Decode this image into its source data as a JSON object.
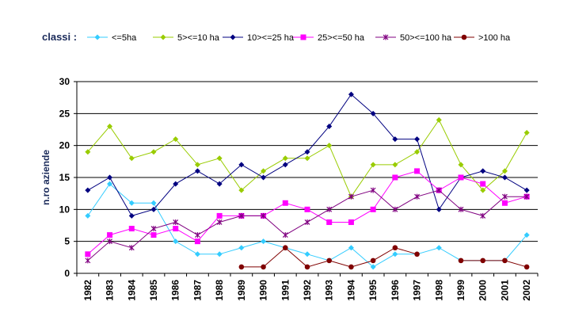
{
  "chart_data": {
    "type": "line",
    "legend_title": "classi :",
    "ylabel": "n.ro aziende",
    "xlabel": "",
    "ylim": [
      0,
      30
    ],
    "yticks": [
      0,
      5,
      10,
      15,
      20,
      25,
      30
    ],
    "grid": "horizontal",
    "legend_position": "top",
    "categories": [
      "1982",
      "1983",
      "1984",
      "1985",
      "1986",
      "1987",
      "1988",
      "1989",
      "1990",
      "1991",
      "1992",
      "1993",
      "1994",
      "1995",
      "1996",
      "1997",
      "1998",
      "1999",
      "2000",
      "2001",
      "2002"
    ],
    "series": [
      {
        "name": "<=5ha",
        "color": "#33ccff",
        "marker": "diamond",
        "values": [
          9,
          14,
          11,
          11,
          5,
          3,
          3,
          4,
          5,
          4,
          3,
          2,
          4,
          1,
          3,
          3,
          4,
          2,
          2,
          2,
          6
        ]
      },
      {
        "name": "5><=10 ha",
        "color": "#99cc00",
        "marker": "diamond",
        "values": [
          19,
          23,
          18,
          19,
          21,
          17,
          18,
          13,
          16,
          18,
          18,
          20,
          12,
          17,
          17,
          19,
          24,
          17,
          13,
          16,
          22
        ]
      },
      {
        "name": "10><=25 ha",
        "color": "#000080",
        "marker": "diamond",
        "values": [
          13,
          15,
          9,
          10,
          14,
          16,
          14,
          17,
          15,
          17,
          19,
          23,
          28,
          25,
          21,
          21,
          10,
          15,
          16,
          15,
          13
        ]
      },
      {
        "name": "25><=50 ha",
        "color": "#ff00ff",
        "marker": "square",
        "values": [
          3,
          6,
          7,
          6,
          7,
          5,
          9,
          9,
          9,
          11,
          10,
          8,
          8,
          10,
          15,
          16,
          13,
          15,
          14,
          11,
          12
        ]
      },
      {
        "name": "50><=100 ha",
        "color": "#800080",
        "marker": "star",
        "values": [
          2,
          5,
          4,
          7,
          8,
          6,
          8,
          9,
          9,
          6,
          8,
          10,
          12,
          13,
          10,
          12,
          13,
          10,
          9,
          12,
          12
        ]
      },
      {
        "name": ">100 ha",
        "color": "#800000",
        "marker": "circle",
        "values": [
          null,
          null,
          null,
          null,
          null,
          null,
          null,
          1,
          1,
          4,
          1,
          2,
          1,
          2,
          4,
          3,
          null,
          2,
          2,
          2,
          1
        ]
      }
    ]
  }
}
